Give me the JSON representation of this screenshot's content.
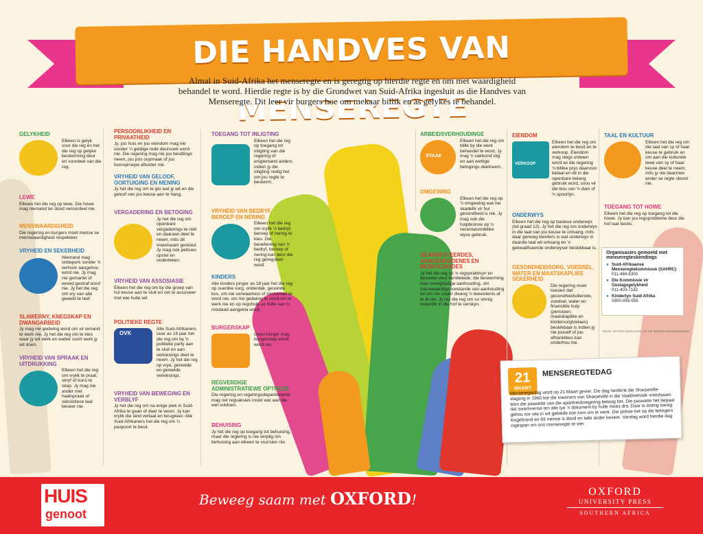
{
  "title": "DIE HANDVES VAN MENSEREGTE",
  "intro": "Almal in Suid-Afrika het menseregte en is geregtig op hierdie regte en om met waardigheid behandel te word. Hierdie regte is by die Grondwet van Suid-Afrika ingesluit as die Handves van Menseregte. Dit leer vir burgers hoe om mekaar billik en as gelykes te behandel.",
  "col1": [
    {
      "title": "GELYKHEID",
      "text": "Elkeen is gelyk voor die reg en het die reg op gelyke beskerming deur en voordeel van die reg."
    },
    {
      "title": "LEWE",
      "text": "Elkeen het die reg op lewe. Die howe mag niemand ter dood veroordeel nie."
    },
    {
      "title": "MENSWAARDIGHEID",
      "text": "Die regering en burgers moet mense se menswaardigheid respekteer."
    },
    {
      "title": "VRYHEID EN SEKERHEID",
      "text": "Niemand mag onbeperk sonder 'n verhoor aangehou word nie. Jy mag nie gemartel of wreed gestraf word nie. Jy het die reg om vry van alle geweld te leef."
    },
    {
      "title": "SLAWERNY, KNEGSKAP EN DWANGARBEID",
      "text": "Jy mag nie gedwing word om vir iemand te werk nie. Jy het die reg om te kies waar jy wil werk en watter soort werk jy wil doen."
    },
    {
      "title": "VRYHEID VAN SPRAAK EN UITDRUKKING",
      "text": "Elkeen het die reg om vrylik te praat, skryf of kuns te skep. Jy mag nie ander met haatspraak of seksistiese taal beseer nie."
    }
  ],
  "col2": [
    {
      "title": "PERSOONLIKHEID EN PRIVAATHEID",
      "text": "Jy, jou huis en jou eiendom mag nie sonder 'n geldige rede deursoek word nie. Die regering mag nie jou besittings neem, jou pos oopmaak of jou foonoproepe afluister nie."
    },
    {
      "title": "VRYHEID VAN GELOOF, OORTUIGING EN MENING",
      "text": "Jy het die reg om te glo wat jy wil en die geloof van jou keuse aan te hang."
    },
    {
      "title": "VERGADERING EN BETOGING",
      "text": "Jy het die reg om openbare vergaderings te reël en daaraan deel te neem, mits dit vreedsaam geskied. Jy mag ook petisies opstel en onderteken."
    },
    {
      "title": "VRYHEID VAN ASSOSIASIE",
      "text": "Elkeen het die reg om by die groep van hul keuse aan te sluit en om te assosieer met wie hulle wil."
    },
    {
      "title": "POLITIEKE REGTE",
      "text": "Alle Suid-Afrikaners ouer as 18 jaar het die reg om by 'n politieke party aan te sluit en aan verkiesings deel te neem. Jy het die reg op vrye, gereelde en gereelde verkiesings."
    },
    {
      "title": "VRYHEID VAN BEWEGING EN VERBLYF",
      "text": "Jy het die reg om na enige plek in Suid-Afrika te gaan of daar te woon. Jy kan vrylik die land verlaat en terugkeer. Alle Suid-Afrikaners het die reg om 'n paspoort te besit."
    }
  ],
  "col3": [
    {
      "title": "TOEGANG TOT INLIGTING",
      "text": "Elkeen het die reg op toegang tot inligting van die regering of enigiemand anders indien jy die inligting nodig het om jou regte te beskerm."
    },
    {
      "title": "VRYHEID VAN BEDRYF, BEROEP EN NERING",
      "text": "Elkeen het die reg om vrylik 'n bedryf, beroep of nering te kies. Die beoefening van 'n bedryf, beroep of nering kan deur die reg gereguleer word."
    },
    {
      "title": "KINDERS",
      "text": "Alle kinders jonger as 18 jaar het die reg op ouerlike sorg, onderdak, gesonde kos, om nie verwaarloos of mishandel te word nie, om nie gedwing te word om te werk nie en op regshulp as hulle van 'n misdaad aangekla word."
    },
    {
      "title": "BURGERSKAP",
      "text": "Geen burger mag burgerskap ontsê word nie."
    },
    {
      "title": "REGVERDIGE ADMINISTRATIEWE OPTREDE",
      "text": "Die regering en regeringsdepartemente mag net regsaksies instel wat aan die wet voldoen."
    },
    {
      "title": "BEHUISING",
      "text": "Jy het die reg op toegang tot behuising, maar die regering is nie verplig om behuising aan elkeen te voorsien nie."
    }
  ],
  "col4": [
    {
      "title": "ARBEIDSVERHOUDINGE",
      "text": "Elkeen het die reg om billik by die werk behandel te word. Jy mag 'n vakbond stig en aan wettige betogings deelneem."
    },
    {
      "title": "OMGEWING",
      "text": "Elkeen het die reg op 'n omgewing wat nie skadelik vir hul gesondheid is nie. Jy mag ook die hulpbronne op 'n verantwoordelike wyse gebruik."
    },
    {
      "title": "GEARRESTEERDES, AANGEHOUDENES EN BESKULDIGDES",
      "text": "Jy het die reg op 'n regspraktisyn en besoeke deur familielede; die beskerming teen onregmatige aanhouding, om menswaardige toestande van aanhouding en om nie onder dwang 'n bekentenis af te lê nie. Jy het die reg om so vinnig moontlik in die hof te verskyn."
    }
  ],
  "col5": [
    {
      "title": "EIENDOM",
      "text": "Elkeen het die reg om eiendom te besit en te verkoop. Eiendom mag slegs onteien word as die regering 'n billike prys daarvoor betaal en dit in die openbare belang gebruik word, soos vir die bou van 'n dam of 'n spoorlyn."
    },
    {
      "title": "ONDERWYS",
      "text": "Elkeen het die reg op basiese onderwys (tot graad 12). Jy het die reg om onderwys in die taal van jou keuse te ontvang, mits daar genoeg leerders is wat onderwys in daardie taal wil ontvang en 'n gekwalifiseerde onderwyser beskikbaar is."
    },
    {
      "title": "GESONDHEIDSORG, VOEDSEL, WATER EN MAATSKAPLIKE SEKERHEID",
      "text": "Die regering moet toesien dat gesondheidsdienste, voedsel, water en finansiële hulp (pensioen, maatskaplike en kindersorgtoelaes) beskikbaar is indien jy nie jouself of jou afhanklikes kan onderhou nie."
    }
  ],
  "col6": [
    {
      "title": "TAAL EN KULTUUR",
      "text": "Elkeen het die reg om die taal van sy of haar keuse te gebruik en om aan die kulturele lewe van sy of haar keuse deel te neem, mits jy nie daarmee ander se regte skend nie."
    },
    {
      "title": "TOEGANG TOT HOWE",
      "text": "Elkeen het die reg op toegang tot die howe. Jy kan jou regsprobleme deur die hof laat beslis."
    }
  ],
  "orgs": {
    "heading": "Organisasies gemoeid met menseregteskendings",
    "items": [
      {
        "name": "Suid-Afrikaanse Menseregtekommissie (SAHRC)",
        "phone": "011-484-8300"
      },
      {
        "name": "Die Kommissie vir Geslagsgelykheid",
        "phone": "011-403-7182"
      },
      {
        "name": "Kinderlyn Suid-Afrika",
        "phone": "0800-055-555"
      }
    ]
  },
  "callout": {
    "title": "MENSEREGTEDAG",
    "day": "21",
    "month": "MAART",
    "text": "Menseregtedag word op 21 Maart gevier. Die dag herdenk die Sharpeville-slagting in 1960 toe die inwoners van Sharpeville in die Vaaldriehoek vreedsaam teen die paswette van die apartheidsregering betoog het. Die paswette het bepaal dat swartmense ten alle tye 'n dokument by hulle moes dra. Daar is streng toesig gehou oor wie in wit gebiede kon kom om te werk. Die polisie het op die betogers losgebrand en 69 mense is dood en talle ander beseer. Vandag word hierdie dag ingespan om ons menseregte te vier."
  },
  "footer": {
    "huis_top": "HUIS",
    "huis_bottom": "genoot",
    "slogan_lead": "Beweeg saam met",
    "slogan_brand": "OXFORD",
    "slogan_end": "!",
    "oup_a": "OXFORD",
    "oup_b": "UNIVERSITY PRESS",
    "oup_c": "SOUTHERN AFRICA"
  },
  "signs": {
    "staak": "STAAK",
    "verkoop": "VERKOOP",
    "ovk": "OVK"
  },
  "brand_small": "BRON: OXFORD SOSIOLOGIE VIR DIE VERSORGINGSOMGEWING"
}
